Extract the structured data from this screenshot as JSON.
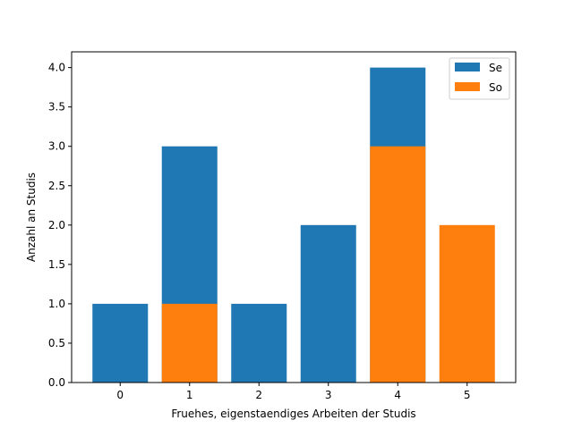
{
  "chart_data": {
    "type": "bar",
    "stacked": false,
    "note_overlay": "Series drawn overlapping (So drawn on top of Se), not stacked",
    "categories": [
      0,
      1,
      2,
      3,
      4,
      5
    ],
    "series": [
      {
        "name": "Se",
        "values": [
          1,
          3,
          1,
          2,
          4,
          0
        ],
        "color": "#1f77b4"
      },
      {
        "name": "So",
        "values": [
          0,
          1,
          0,
          0,
          3,
          2
        ],
        "color": "#ff7f0e"
      }
    ],
    "xlabel": "Fruehes, eigenstaendiges Arbeiten der Studis",
    "ylabel": "Anzahl an Studis",
    "ylim": [
      0,
      4.2
    ],
    "yticks": [
      "0.0",
      "0.5",
      "1.0",
      "1.5",
      "2.0",
      "2.5",
      "3.0",
      "3.5",
      "4.0"
    ],
    "xticks": [
      "0",
      "1",
      "2",
      "3",
      "4",
      "5"
    ],
    "grid": false,
    "legend_position": "top-right"
  }
}
